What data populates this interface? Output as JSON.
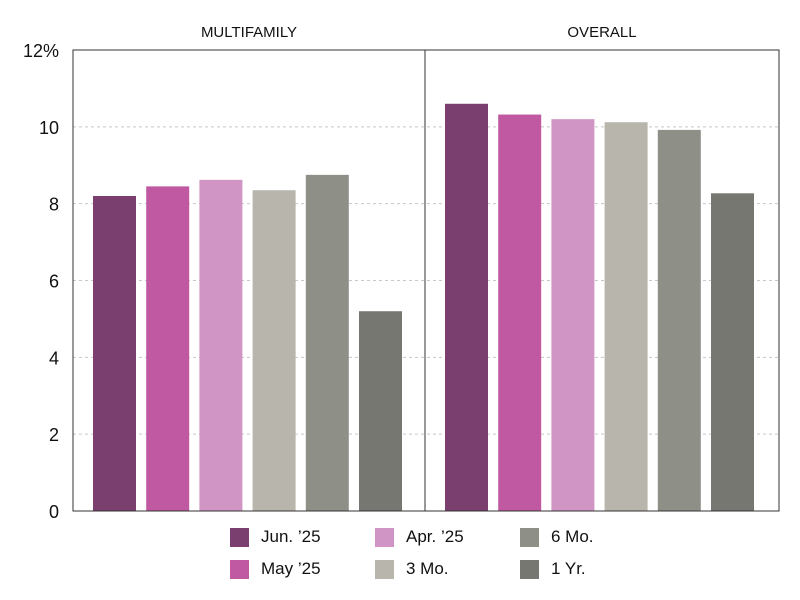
{
  "chart_data": {
    "type": "bar",
    "panels": [
      {
        "title": "MULTIFAMILY",
        "values": [
          8.2,
          8.45,
          8.62,
          8.35,
          8.75,
          5.2
        ]
      },
      {
        "title": "OVERALL",
        "values": [
          10.6,
          10.32,
          10.2,
          10.12,
          9.92,
          8.27
        ]
      }
    ],
    "series": [
      {
        "name": "Jun. ’25",
        "color": "#7a3f6e"
      },
      {
        "name": "May ’25",
        "color": "#c159a2"
      },
      {
        "name": "Apr. ’25",
        "color": "#d095c4"
      },
      {
        "name": "3 Mo.",
        "color": "#b7b5ac"
      },
      {
        "name": "6 Mo.",
        "color": "#8e8f87"
      },
      {
        "name": "1 Yr.",
        "color": "#767770"
      }
    ],
    "y_ticks": [
      "0",
      "2",
      "4",
      "6",
      "8",
      "10",
      "12%"
    ],
    "ylim": [
      0,
      12
    ],
    "grid": true,
    "legend_placement": "bottom"
  }
}
